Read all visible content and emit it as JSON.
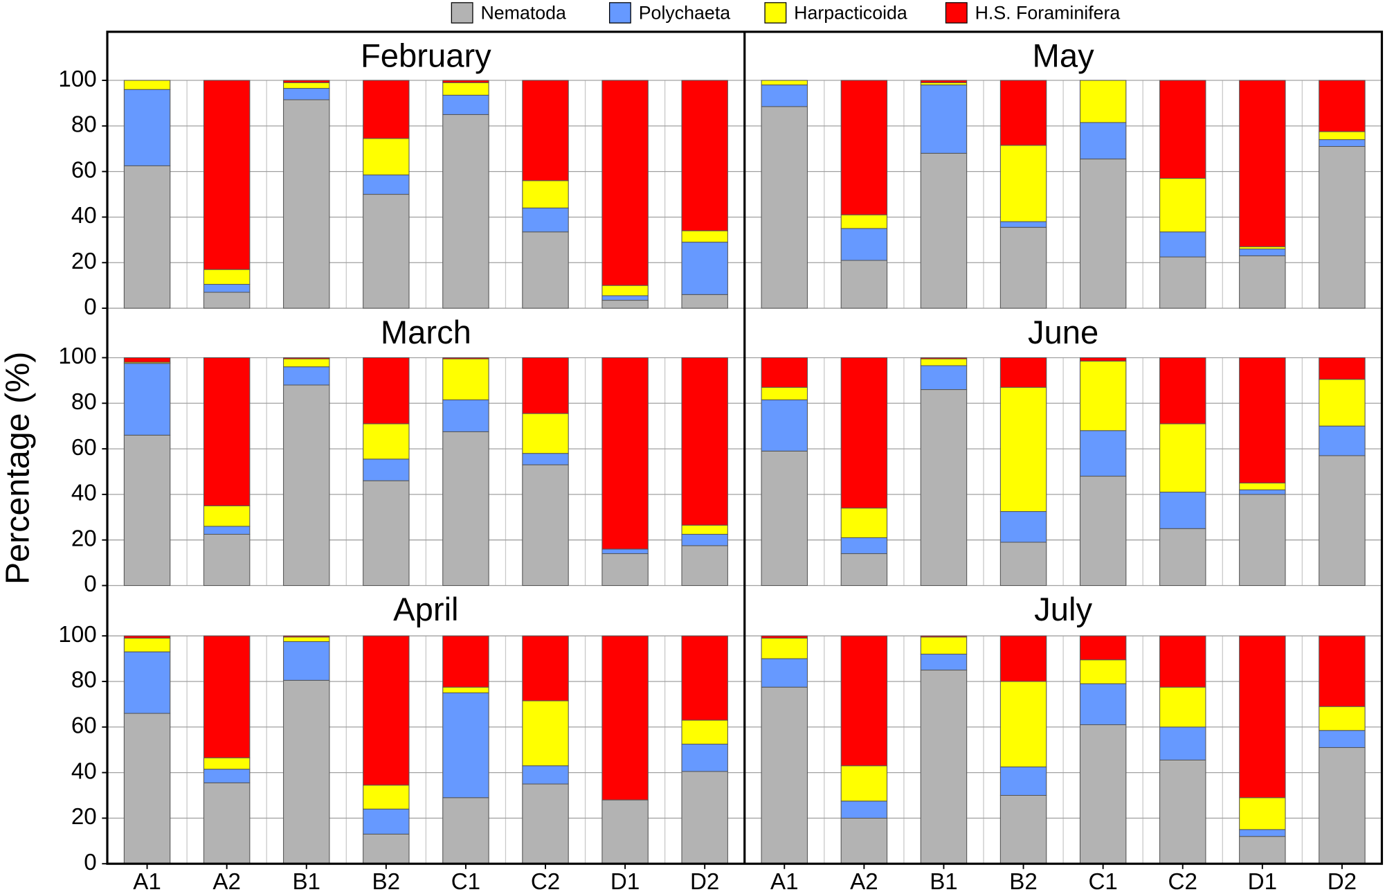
{
  "chart_data": [
    {
      "type": "bar",
      "title": "February",
      "ylabel": "Percentage (%)",
      "stacked": true,
      "categories": [
        "A1",
        "A2",
        "B1",
        "B2",
        "C1",
        "C2",
        "D1",
        "D2"
      ],
      "ylim": [
        0,
        100
      ],
      "yticks": [
        0,
        20,
        40,
        60,
        80,
        100
      ],
      "grid": true,
      "series": [
        {
          "name": "Nematoda",
          "color": "#b3b3b3",
          "values": [
            62.5,
            7,
            91.5,
            50,
            85,
            33.5,
            3.5,
            6
          ]
        },
        {
          "name": "Polychaeta",
          "color": "#6699ff",
          "values": [
            33.5,
            3.5,
            5,
            8.5,
            8.5,
            10.5,
            2,
            23
          ]
        },
        {
          "name": "Harpacticoida",
          "color": "#ffff00",
          "values": [
            4,
            6.5,
            2.5,
            16,
            5.5,
            12,
            4.5,
            5
          ]
        },
        {
          "name": "H.S. Foraminifera",
          "color": "#ff0000",
          "values": [
            0,
            83,
            1,
            25.5,
            1,
            44,
            90,
            66
          ]
        }
      ]
    },
    {
      "type": "bar",
      "title": "May",
      "stacked": true,
      "categories": [
        "A1",
        "A2",
        "B1",
        "B2",
        "C1",
        "C2",
        "D1",
        "D2"
      ],
      "ylim": [
        0,
        100
      ],
      "yticks": [
        0,
        20,
        40,
        60,
        80,
        100
      ],
      "grid": true,
      "series": [
        {
          "name": "Nematoda",
          "color": "#b3b3b3",
          "values": [
            88.5,
            21,
            68,
            35.5,
            65.5,
            22.5,
            23,
            71
          ]
        },
        {
          "name": "Polychaeta",
          "color": "#6699ff",
          "values": [
            9.5,
            14,
            30,
            2.5,
            16,
            11,
            3,
            3
          ]
        },
        {
          "name": "Harpacticoida",
          "color": "#ffff00",
          "values": [
            2,
            6,
            1,
            33.5,
            18.5,
            23.5,
            1,
            3.5
          ]
        },
        {
          "name": "H.S. Foraminifera",
          "color": "#ff0000",
          "values": [
            0,
            59,
            1,
            28.5,
            0,
            43,
            73,
            22.5
          ]
        }
      ]
    },
    {
      "type": "bar",
      "title": "March",
      "stacked": true,
      "categories": [
        "A1",
        "A2",
        "B1",
        "B2",
        "C1",
        "C2",
        "D1",
        "D2"
      ],
      "ylim": [
        0,
        100
      ],
      "yticks": [
        0,
        20,
        40,
        60,
        80,
        100
      ],
      "grid": true,
      "series": [
        {
          "name": "Nematoda",
          "color": "#b3b3b3",
          "values": [
            66,
            22.5,
            88,
            46,
            67.5,
            53,
            14,
            17.5
          ]
        },
        {
          "name": "Polychaeta",
          "color": "#6699ff",
          "values": [
            31.5,
            3.5,
            8,
            9.5,
            14,
            5,
            2,
            5
          ]
        },
        {
          "name": "Harpacticoida",
          "color": "#ffff00",
          "values": [
            0.5,
            9,
            3.5,
            15.5,
            18,
            17.5,
            0,
            4
          ]
        },
        {
          "name": "H.S. Foraminifera",
          "color": "#ff0000",
          "values": [
            2,
            65,
            0.5,
            29,
            0.5,
            24.5,
            84,
            73.5
          ]
        }
      ]
    },
    {
      "type": "bar",
      "title": "June",
      "stacked": true,
      "categories": [
        "A1",
        "A2",
        "B1",
        "B2",
        "C1",
        "C2",
        "D1",
        "D2"
      ],
      "ylim": [
        0,
        100
      ],
      "yticks": [
        0,
        20,
        40,
        60,
        80,
        100
      ],
      "grid": true,
      "series": [
        {
          "name": "Nematoda",
          "color": "#b3b3b3",
          "values": [
            59,
            14,
            86,
            19,
            48,
            25,
            40,
            57
          ]
        },
        {
          "name": "Polychaeta",
          "color": "#6699ff",
          "values": [
            22.5,
            7,
            10.5,
            13.5,
            20,
            16,
            2,
            13
          ]
        },
        {
          "name": "Harpacticoida",
          "color": "#ffff00",
          "values": [
            5.5,
            13,
            3,
            54.5,
            30.5,
            30,
            3,
            20.5
          ]
        },
        {
          "name": "H.S. Foraminifera",
          "color": "#ff0000",
          "values": [
            13,
            66,
            0.5,
            13,
            1.5,
            29,
            55,
            9.5
          ]
        }
      ]
    },
    {
      "type": "bar",
      "title": "April",
      "stacked": true,
      "categories": [
        "A1",
        "A2",
        "B1",
        "B2",
        "C1",
        "C2",
        "D1",
        "D2"
      ],
      "ylim": [
        0,
        100
      ],
      "yticks": [
        0,
        20,
        40,
        60,
        80,
        100
      ],
      "grid": true,
      "series": [
        {
          "name": "Nematoda",
          "color": "#b3b3b3",
          "values": [
            66,
            35.5,
            80.5,
            13,
            29,
            35,
            28,
            40.5
          ]
        },
        {
          "name": "Polychaeta",
          "color": "#6699ff",
          "values": [
            27,
            6,
            17,
            11,
            46,
            8,
            0,
            12
          ]
        },
        {
          "name": "Harpacticoida",
          "color": "#ffff00",
          "values": [
            6,
            5,
            2,
            10.5,
            2.5,
            28.5,
            0,
            10.5
          ]
        },
        {
          "name": "H.S. Foraminifera",
          "color": "#ff0000",
          "values": [
            1,
            53.5,
            0.5,
            65.5,
            22.5,
            28.5,
            72,
            37
          ]
        }
      ]
    },
    {
      "type": "bar",
      "title": "July",
      "stacked": true,
      "categories": [
        "A1",
        "A2",
        "B1",
        "B2",
        "C1",
        "C2",
        "D1",
        "D2"
      ],
      "ylim": [
        0,
        100
      ],
      "yticks": [
        0,
        20,
        40,
        60,
        80,
        100
      ],
      "grid": true,
      "series": [
        {
          "name": "Nematoda",
          "color": "#b3b3b3",
          "values": [
            77.5,
            20,
            85,
            30,
            61,
            45.5,
            12,
            51
          ]
        },
        {
          "name": "Polychaeta",
          "color": "#6699ff",
          "values": [
            12.5,
            7.5,
            7,
            12.5,
            18,
            14.5,
            3,
            7.5
          ]
        },
        {
          "name": "Harpacticoida",
          "color": "#ffff00",
          "values": [
            9,
            15.5,
            7.5,
            37.5,
            10.5,
            17.5,
            14,
            10.5
          ]
        },
        {
          "name": "H.S. Foraminifera",
          "color": "#ff0000",
          "values": [
            1,
            57,
            0.5,
            20,
            10.5,
            22.5,
            71,
            31
          ]
        }
      ]
    }
  ]
}
